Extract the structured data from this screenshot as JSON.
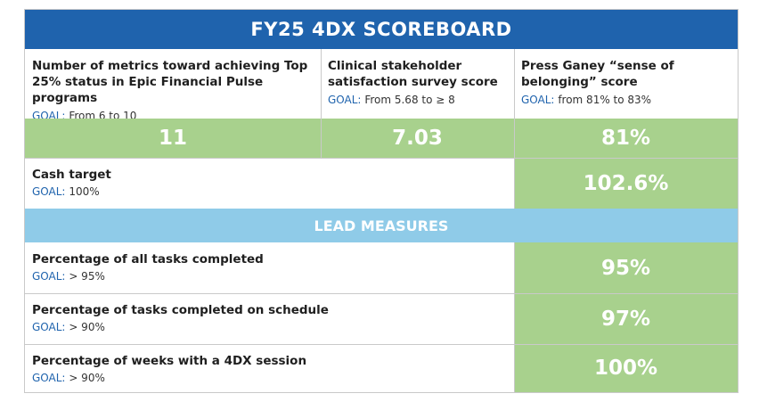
{
  "title": "FY25 4DX SCOREBOARD",
  "metrics": [
    {
      "name": "Number of metrics toward achieving Top 25% status in Epic Financial Pulse programs",
      "goal_key": "GOAL:",
      "goal_text": "From 6 to 10",
      "value": "11"
    },
    {
      "name": "Clinical stakeholder satisfaction survey score",
      "goal_key": "GOAL:",
      "goal_text": "From 5.68 to ≥ 8",
      "value": "7.03"
    },
    {
      "name": "Press Ganey “sense of belonging” score",
      "goal_key": "GOAL:",
      "goal_text": "from 81% to 83%",
      "value": "81%"
    }
  ],
  "cash": {
    "name": "Cash target",
    "goal_key": "GOAL:",
    "goal_text": "100%",
    "value": "102.6%"
  },
  "lead_header": "LEAD MEASURES",
  "lead_measures": [
    {
      "name": "Percentage of all tasks completed",
      "goal_key": "GOAL:",
      "goal_text": "> 95%",
      "value": "95%"
    },
    {
      "name": "Percentage of tasks completed on schedule",
      "goal_key": "GOAL:",
      "goal_text": "> 90%",
      "value": "97%"
    },
    {
      "name": "Percentage of weeks with a 4DX session",
      "goal_key": "GOAL:",
      "goal_text": "> 90%",
      "value": "100%"
    }
  ],
  "colors": {
    "title_bg": "#1f63ad",
    "lead_bg": "#8fcbe8",
    "value_bg": "#a8d18d",
    "goal_key": "#1f63ad"
  }
}
